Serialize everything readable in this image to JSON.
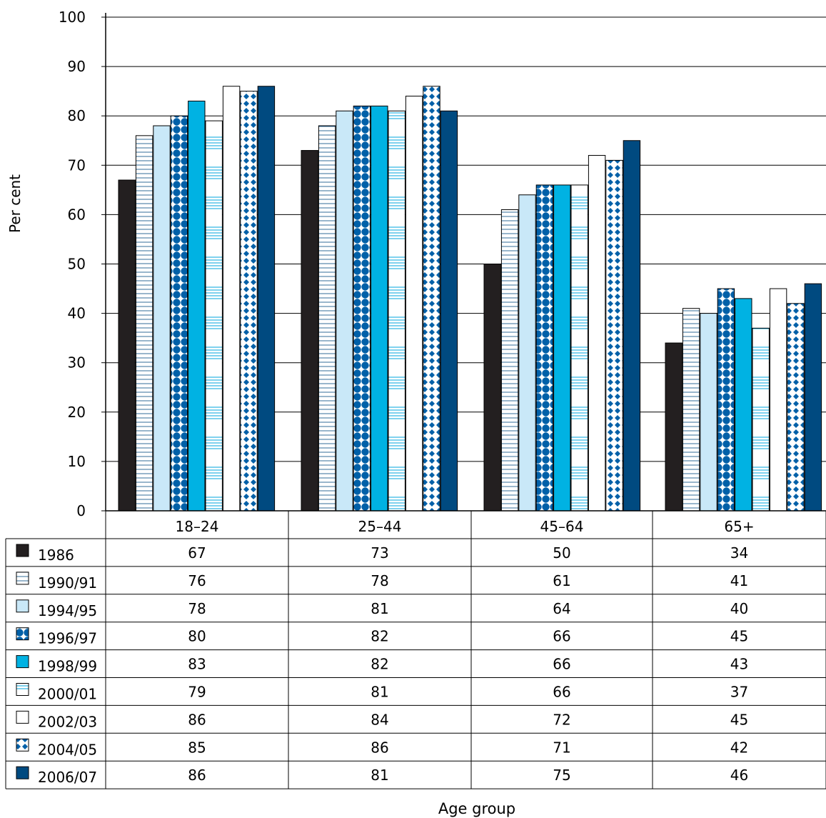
{
  "chart_data": {
    "type": "bar",
    "categories": [
      "18–24",
      "25–44",
      "45–64",
      "65+"
    ],
    "ylabel": "Per cent",
    "xlabel": "Age group",
    "ylim": [
      0,
      100
    ],
    "yticks": [
      0,
      10,
      20,
      30,
      40,
      50,
      60,
      70,
      80,
      90,
      100
    ],
    "grid": true,
    "legend": "data table below chart",
    "series": [
      {
        "name": "1986",
        "values": [
          67,
          73,
          50,
          34
        ],
        "pattern": "solid",
        "color": "#231f20"
      },
      {
        "name": "1990/91",
        "values": [
          76,
          78,
          61,
          41
        ],
        "pattern": "hlines",
        "color": "#ffffff",
        "accent": "#004a7f"
      },
      {
        "name": "1994/95",
        "values": [
          78,
          81,
          64,
          40
        ],
        "pattern": "solid",
        "color": "#c9e8f8"
      },
      {
        "name": "1996/97",
        "values": [
          80,
          82,
          66,
          45
        ],
        "pattern": "dots",
        "color": "#ffffff",
        "accent": "#0060a8"
      },
      {
        "name": "1998/99",
        "values": [
          83,
          82,
          66,
          43
        ],
        "pattern": "solid",
        "color": "#00b2e3"
      },
      {
        "name": "2000/01",
        "values": [
          79,
          81,
          66,
          37
        ],
        "pattern": "hlinegroups",
        "color": "#ffffff",
        "accent": "#00a6dd"
      },
      {
        "name": "2002/03",
        "values": [
          86,
          84,
          72,
          45
        ],
        "pattern": "solid",
        "color": "#ffffff"
      },
      {
        "name": "2004/05",
        "values": [
          85,
          86,
          71,
          42
        ],
        "pattern": "diamonds",
        "color": "#ffffff",
        "accent": "#0060a8"
      },
      {
        "name": "2006/07",
        "values": [
          86,
          81,
          75,
          46
        ],
        "pattern": "solid",
        "color": "#004a80"
      }
    ]
  }
}
